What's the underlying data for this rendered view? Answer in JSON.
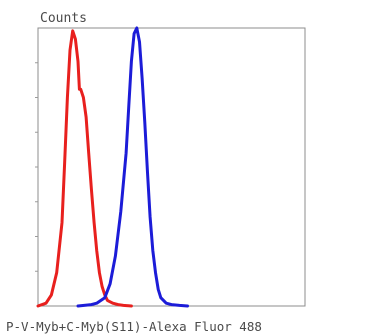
{
  "chart_data": {
    "type": "line",
    "ylabel": "Counts",
    "xlabel": "P-V-Myb+C-Myb(S11)-Alexa Fluor 488",
    "xlim": [
      0,
      100
    ],
    "ylim": [
      0,
      100
    ],
    "grid": false,
    "x_tick_labels": [],
    "y_tick_labels": [],
    "series": [
      {
        "color": "#e8201e",
        "x": [
          0,
          3,
          5,
          7,
          9,
          10,
          11,
          12,
          13,
          14,
          15,
          15.5,
          16,
          17,
          18,
          19,
          20,
          21,
          22,
          23,
          24,
          25,
          26,
          28,
          30,
          32,
          35
        ],
        "y": [
          0,
          1,
          4,
          12,
          30,
          52,
          75,
          92,
          99,
          96,
          88,
          78,
          78,
          75,
          68,
          55,
          42,
          30,
          20,
          12,
          7,
          4,
          2,
          1,
          0.5,
          0.2,
          0
        ]
      },
      {
        "color": "#1c1cd8",
        "x": [
          15,
          20,
          22,
          25,
          27,
          29,
          31,
          33,
          34,
          35,
          36,
          37,
          38,
          39,
          40,
          41,
          42,
          43,
          44,
          45,
          46,
          48,
          50,
          53,
          56
        ],
        "y": [
          0,
          0.5,
          1,
          3,
          8,
          18,
          34,
          55,
          72,
          88,
          98,
          100,
          95,
          82,
          66,
          48,
          32,
          20,
          12,
          6,
          3,
          1,
          0.5,
          0.2,
          0
        ]
      }
    ]
  }
}
